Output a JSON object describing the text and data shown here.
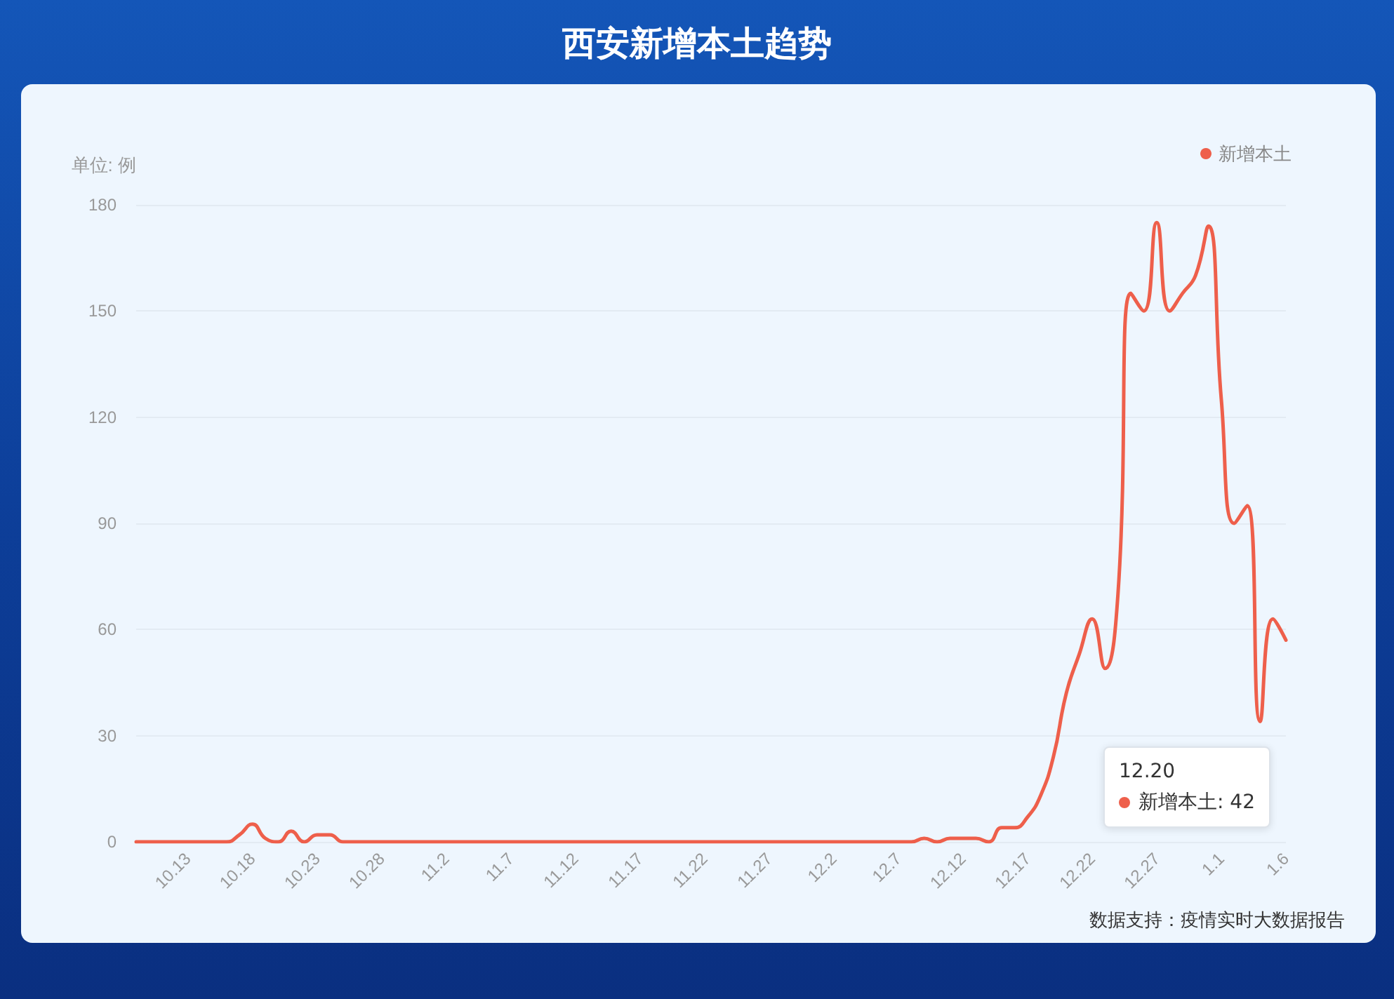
{
  "chart_data": {
    "type": "line",
    "title": "西安新增本土趋势",
    "ylabel": "单位: 例",
    "categories": [
      null,
      null,
      null,
      null,
      "10.13",
      null,
      null,
      null,
      null,
      "10.18",
      null,
      null,
      null,
      null,
      "10.23",
      null,
      null,
      null,
      null,
      "10.28",
      null,
      null,
      null,
      null,
      "11.2",
      null,
      null,
      null,
      null,
      "11.7",
      null,
      null,
      null,
      null,
      "11.12",
      null,
      null,
      null,
      null,
      "11.17",
      null,
      null,
      null,
      null,
      "11.22",
      null,
      null,
      null,
      null,
      "11.27",
      null,
      null,
      null,
      null,
      "12.2",
      null,
      null,
      null,
      null,
      "12.7",
      null,
      null,
      null,
      null,
      "12.12",
      null,
      null,
      null,
      null,
      "12.17",
      null,
      null,
      null,
      null,
      "12.22",
      null,
      null,
      null,
      null,
      "12.27",
      null,
      null,
      null,
      null,
      "1.1",
      null,
      null,
      null,
      null,
      "1.6"
    ],
    "series": [
      {
        "name": "新增本土",
        "color": "#ee5f4b",
        "values": [
          0,
          0,
          0,
          0,
          0,
          0,
          0,
          0,
          2,
          5,
          1,
          0,
          3,
          0,
          2,
          2,
          0,
          0,
          0,
          0,
          0,
          0,
          0,
          0,
          0,
          0,
          0,
          0,
          0,
          0,
          0,
          0,
          0,
          0,
          0,
          0,
          0,
          0,
          0,
          0,
          0,
          0,
          0,
          0,
          0,
          0,
          0,
          0,
          0,
          0,
          0,
          0,
          0,
          0,
          0,
          0,
          0,
          0,
          0,
          0,
          0,
          1,
          0,
          1,
          1,
          1,
          0,
          4,
          4,
          7,
          13,
          24,
          42,
          53,
          63,
          49,
          70,
          155,
          150,
          175,
          150,
          155,
          160,
          174,
          125,
          90,
          95,
          34,
          63,
          57
        ]
      }
    ],
    "ylim": [
      0,
      180
    ],
    "yticks": [
      0,
      30,
      60,
      90,
      120,
      150,
      180
    ],
    "grid": "y",
    "legend": "top right",
    "marker": "none",
    "line_style": "solid",
    "annotations": [
      "12.20\n新增本土: 42",
      "数据支持：疫情实时大数据报告"
    ]
  }
}
